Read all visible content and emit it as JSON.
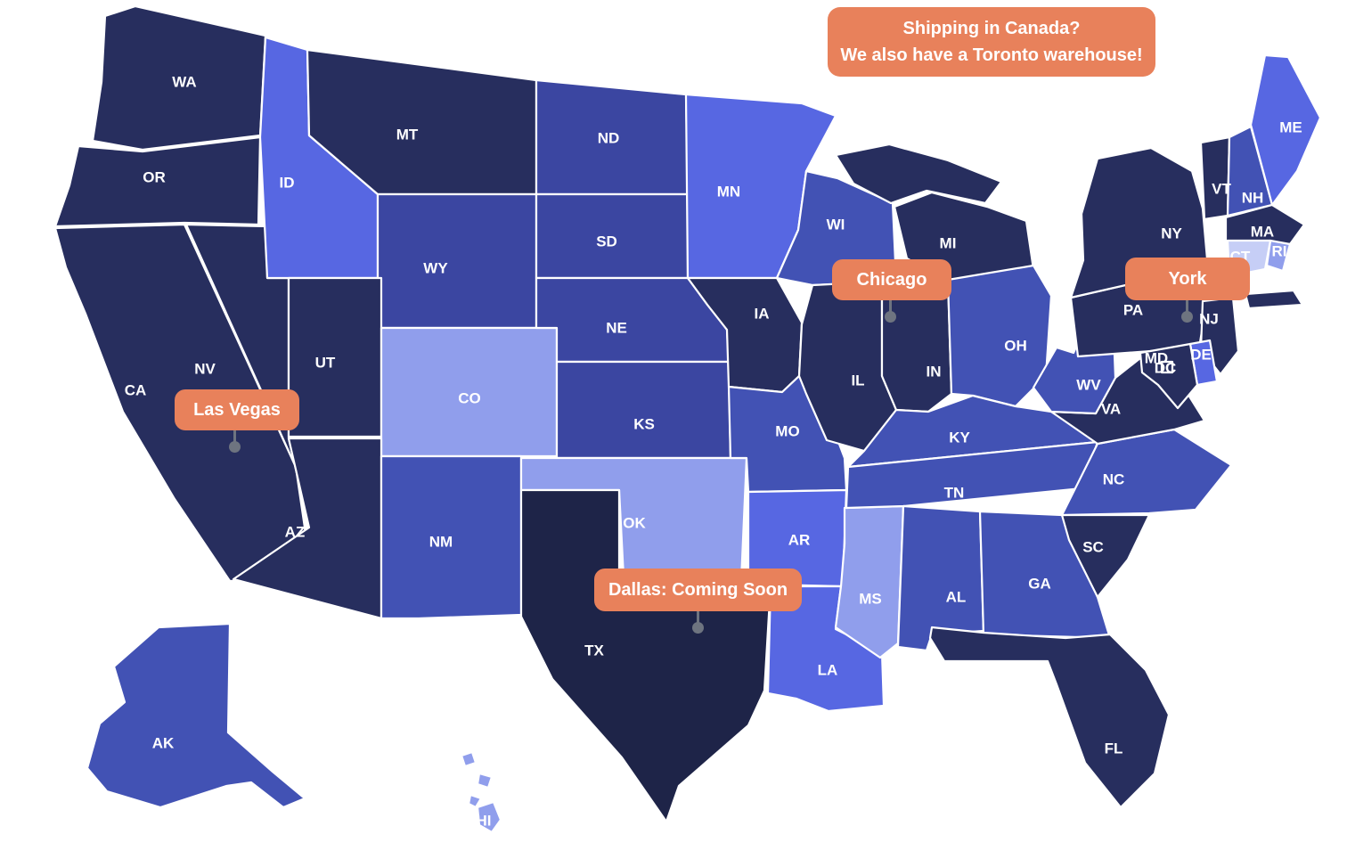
{
  "banner": {
    "line1": "Shipping in Canada?",
    "line2": "We also have a Toronto warehouse!"
  },
  "badges": [
    {
      "id": "chicago",
      "label": "Chicago"
    },
    {
      "id": "york",
      "label": "York"
    },
    {
      "id": "las-vegas",
      "label": "Las Vegas"
    },
    {
      "id": "dallas",
      "label": "Dallas: Coming Soon"
    }
  ],
  "colors": {
    "badge_bg": "#E8815B",
    "badge_text": "#FFFFFF",
    "pin": "#6E7480",
    "state_border": "#FFFFFF",
    "background": "#FFFFFF",
    "state_label_text": "#FFFFFF"
  },
  "shades": {
    "darkest": "#1E2448",
    "navy": "#272E5E",
    "royal_dark": "#3B46A1",
    "royal": "#4252B4",
    "bright": "#5767E2",
    "periwinkle": "#909EEC",
    "lightest": "#C6CEF6"
  },
  "map": {
    "states": [
      {
        "abbr": "WA",
        "shade": "navy"
      },
      {
        "abbr": "OR",
        "shade": "navy"
      },
      {
        "abbr": "CA",
        "shade": "navy"
      },
      {
        "abbr": "NV",
        "shade": "navy"
      },
      {
        "abbr": "ID",
        "shade": "bright"
      },
      {
        "abbr": "MT",
        "shade": "navy"
      },
      {
        "abbr": "WY",
        "shade": "royal_dark"
      },
      {
        "abbr": "UT",
        "shade": "navy"
      },
      {
        "abbr": "CO",
        "shade": "periwinkle"
      },
      {
        "abbr": "AZ",
        "shade": "navy"
      },
      {
        "abbr": "NM",
        "shade": "royal"
      },
      {
        "abbr": "ND",
        "shade": "royal_dark"
      },
      {
        "abbr": "SD",
        "shade": "royal_dark"
      },
      {
        "abbr": "NE",
        "shade": "royal_dark"
      },
      {
        "abbr": "KS",
        "shade": "royal_dark"
      },
      {
        "abbr": "OK",
        "shade": "periwinkle"
      },
      {
        "abbr": "TX",
        "shade": "darkest"
      },
      {
        "abbr": "MN",
        "shade": "bright"
      },
      {
        "abbr": "IA",
        "shade": "navy"
      },
      {
        "abbr": "MO",
        "shade": "royal"
      },
      {
        "abbr": "AR",
        "shade": "bright"
      },
      {
        "abbr": "LA",
        "shade": "bright"
      },
      {
        "abbr": "MS",
        "shade": "periwinkle"
      },
      {
        "abbr": "WI",
        "shade": "royal"
      },
      {
        "abbr": "IL",
        "shade": "navy"
      },
      {
        "abbr": "IN",
        "shade": "navy"
      },
      {
        "abbr": "MI",
        "shade": "navy"
      },
      {
        "abbr": "OH",
        "shade": "royal"
      },
      {
        "abbr": "KY",
        "shade": "royal"
      },
      {
        "abbr": "TN",
        "shade": "royal"
      },
      {
        "abbr": "AL",
        "shade": "royal"
      },
      {
        "abbr": "GA",
        "shade": "royal"
      },
      {
        "abbr": "FL",
        "shade": "navy"
      },
      {
        "abbr": "SC",
        "shade": "navy"
      },
      {
        "abbr": "NC",
        "shade": "royal"
      },
      {
        "abbr": "VA",
        "shade": "navy"
      },
      {
        "abbr": "WV",
        "shade": "royal"
      },
      {
        "abbr": "PA",
        "shade": "navy"
      },
      {
        "abbr": "NY",
        "shade": "navy"
      },
      {
        "abbr": "NJ",
        "shade": "navy"
      },
      {
        "abbr": "VT",
        "shade": "navy"
      },
      {
        "abbr": "NH",
        "shade": "royal"
      },
      {
        "abbr": "ME",
        "shade": "bright"
      },
      {
        "abbr": "MA",
        "shade": "navy"
      },
      {
        "abbr": "RI",
        "shade": "periwinkle"
      },
      {
        "abbr": "CT",
        "shade": "lightest"
      },
      {
        "abbr": "DE",
        "shade": "bright"
      },
      {
        "abbr": "MD",
        "shade": "navy"
      },
      {
        "abbr": "DC",
        "shade": "navy"
      },
      {
        "abbr": "AK",
        "shade": "royal"
      },
      {
        "abbr": "HI",
        "shade": "periwinkle"
      }
    ]
  }
}
